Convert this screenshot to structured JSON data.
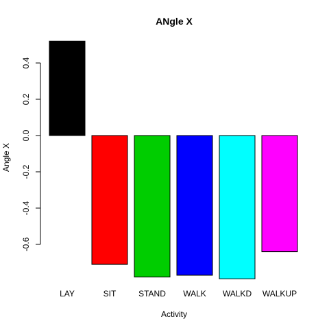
{
  "chart_data": {
    "type": "bar",
    "title": "ANgle X",
    "xlabel": "Activity",
    "ylabel": "Angle X",
    "categories": [
      "LAY",
      "SIT",
      "STAND",
      "WALK",
      "WALKD",
      "WALKUP"
    ],
    "values": [
      0.52,
      -0.71,
      -0.78,
      -0.77,
      -0.79,
      -0.64
    ],
    "colors": [
      "#000000",
      "#ff0000",
      "#00cd00",
      "#0000ff",
      "#00ffff",
      "#ff00ff"
    ],
    "yticks": [
      0.4,
      0.2,
      0.0,
      -0.2,
      -0.4,
      -0.6
    ],
    "ytick_labels": [
      "0.4",
      "0.2",
      "0.0",
      "-0.2",
      "-0.4",
      "-0.6"
    ],
    "ylim": [
      -0.8,
      0.52
    ],
    "grid": false,
    "legend": "none"
  }
}
